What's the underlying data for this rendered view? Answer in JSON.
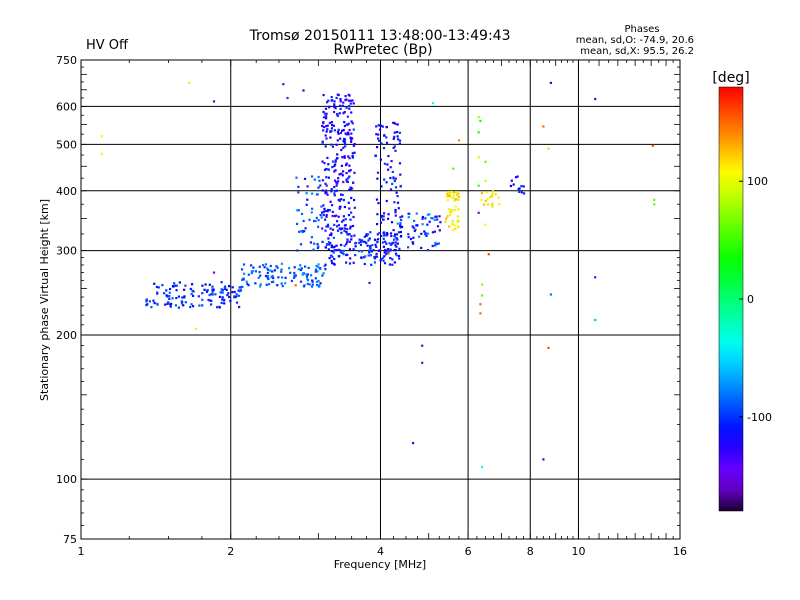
{
  "chart_data": {
    "type": "scatter",
    "title": "Tromsø 20150111 13:48:00-13:49:43",
    "subtitle": "RwPretec (Bp)",
    "status": "HV Off",
    "status_color": "#dd0000",
    "phases": {
      "heading": "Phases",
      "line_o": "mean, sd,O: -74.9, 20.6",
      "line_x": "mean, sd,X:  95.5, 26.2"
    },
    "xlabel": "Frequency [MHz]",
    "ylabel": "Stationary phase Virtual Height [km]",
    "x_scale": "log",
    "y_scale": "log",
    "xlim": [
      1,
      16
    ],
    "ylim": [
      75,
      750
    ],
    "x_ticks": [
      1,
      2,
      4,
      6,
      8,
      10,
      16
    ],
    "x_tick_labels": [
      "1",
      "2",
      "4",
      "6",
      "8",
      "10",
      "16"
    ],
    "y_ticks": [
      75,
      100,
      200,
      300,
      400,
      500,
      600,
      750
    ],
    "y_tick_labels": [
      "75",
      "100",
      "200",
      "300",
      "400",
      "500",
      "600",
      "750"
    ],
    "grid": true,
    "colorbar": {
      "label": "[deg]",
      "range": [
        -180,
        180
      ],
      "ticks": [
        100,
        0,
        -100
      ],
      "tick_labels": [
        "100",
        "0",
        "-100"
      ]
    },
    "clusters": [
      {
        "x": [
          1.35,
          2.1
        ],
        "y": [
          228,
          258
        ],
        "n": 130,
        "phase": [
          -120,
          -85
        ]
      },
      {
        "x": [
          2.1,
          3.1
        ],
        "y": [
          252,
          282
        ],
        "n": 110,
        "phase": [
          -110,
          -70
        ]
      },
      {
        "x": [
          3.1,
          4.4
        ],
        "y": [
          280,
          330
        ],
        "n": 160,
        "phase": [
          -130,
          -85
        ]
      },
      {
        "x": [
          3.05,
          3.55
        ],
        "y": [
          330,
          640
        ],
        "n": 260,
        "phase": [
          -140,
          -95
        ]
      },
      {
        "x": [
          2.7,
          3.1
        ],
        "y": [
          300,
          430
        ],
        "n": 50,
        "phase": [
          -110,
          -75
        ]
      },
      {
        "x": [
          3.9,
          4.4
        ],
        "y": [
          300,
          560
        ],
        "n": 110,
        "phase": [
          -135,
          -95
        ]
      },
      {
        "x": [
          4.3,
          5.3
        ],
        "y": [
          300,
          360
        ],
        "n": 60,
        "phase": [
          -130,
          -70
        ]
      },
      {
        "x": [
          5.4,
          5.75
        ],
        "y": [
          330,
          400
        ],
        "n": 45,
        "phase": [
          90,
          130
        ]
      },
      {
        "x": [
          6.3,
          6.95
        ],
        "y": [
          370,
          400
        ],
        "n": 18,
        "phase": [
          95,
          135
        ]
      },
      {
        "x": [
          7.3,
          7.95
        ],
        "y": [
          395,
          430
        ],
        "n": 12,
        "phase": [
          -125,
          -95
        ]
      }
    ],
    "points": [
      {
        "x": 1.1,
        "y": 520,
        "phase": 110
      },
      {
        "x": 1.1,
        "y": 478,
        "phase": 110
      },
      {
        "x": 1.65,
        "y": 672,
        "phase": 110
      },
      {
        "x": 1.85,
        "y": 615,
        "phase": -160
      },
      {
        "x": 1.85,
        "y": 270,
        "phase": -150
      },
      {
        "x": 1.7,
        "y": 206,
        "phase": 110
      },
      {
        "x": 2.55,
        "y": 668,
        "phase": -160
      },
      {
        "x": 2.6,
        "y": 625,
        "phase": -150
      },
      {
        "x": 2.8,
        "y": 648,
        "phase": -110
      },
      {
        "x": 2.7,
        "y": 254,
        "phase": 150
      },
      {
        "x": 3.8,
        "y": 257,
        "phase": -160
      },
      {
        "x": 4.15,
        "y": 296,
        "phase": 150
      },
      {
        "x": 4.85,
        "y": 190,
        "phase": -160
      },
      {
        "x": 4.85,
        "y": 175,
        "phase": -160
      },
      {
        "x": 4.65,
        "y": 119,
        "phase": -130
      },
      {
        "x": 5.1,
        "y": 610,
        "phase": -40
      },
      {
        "x": 5.6,
        "y": 445,
        "phase": 60
      },
      {
        "x": 5.75,
        "y": 510,
        "phase": 140
      },
      {
        "x": 6.3,
        "y": 570,
        "phase": 80
      },
      {
        "x": 6.35,
        "y": 560,
        "phase": 40
      },
      {
        "x": 6.3,
        "y": 530,
        "phase": 40
      },
      {
        "x": 6.3,
        "y": 470,
        "phase": 90
      },
      {
        "x": 6.5,
        "y": 460,
        "phase": 60
      },
      {
        "x": 6.3,
        "y": 410,
        "phase": 50
      },
      {
        "x": 6.5,
        "y": 420,
        "phase": 90
      },
      {
        "x": 6.3,
        "y": 360,
        "phase": -150
      },
      {
        "x": 6.5,
        "y": 340,
        "phase": 110
      },
      {
        "x": 6.6,
        "y": 295,
        "phase": 160
      },
      {
        "x": 6.4,
        "y": 255,
        "phase": 70
      },
      {
        "x": 6.4,
        "y": 242,
        "phase": 60
      },
      {
        "x": 6.35,
        "y": 232,
        "phase": 150
      },
      {
        "x": 6.35,
        "y": 222,
        "phase": 150
      },
      {
        "x": 6.4,
        "y": 106,
        "phase": -40
      },
      {
        "x": 8.5,
        "y": 545,
        "phase": 150
      },
      {
        "x": 8.7,
        "y": 490,
        "phase": 120
      },
      {
        "x": 8.8,
        "y": 672,
        "phase": -130
      },
      {
        "x": 8.8,
        "y": 243,
        "phase": -80
      },
      {
        "x": 8.7,
        "y": 188,
        "phase": 160
      },
      {
        "x": 8.5,
        "y": 110,
        "phase": -130
      },
      {
        "x": 10.8,
        "y": 622,
        "phase": -130
      },
      {
        "x": 10.8,
        "y": 264,
        "phase": -140
      },
      {
        "x": 10.8,
        "y": 215,
        "phase": -60
      },
      {
        "x": 14.1,
        "y": 497,
        "phase": 160
      },
      {
        "x": 14.2,
        "y": 383,
        "phase": 60
      },
      {
        "x": 14.2,
        "y": 375,
        "phase": 60
      }
    ]
  }
}
